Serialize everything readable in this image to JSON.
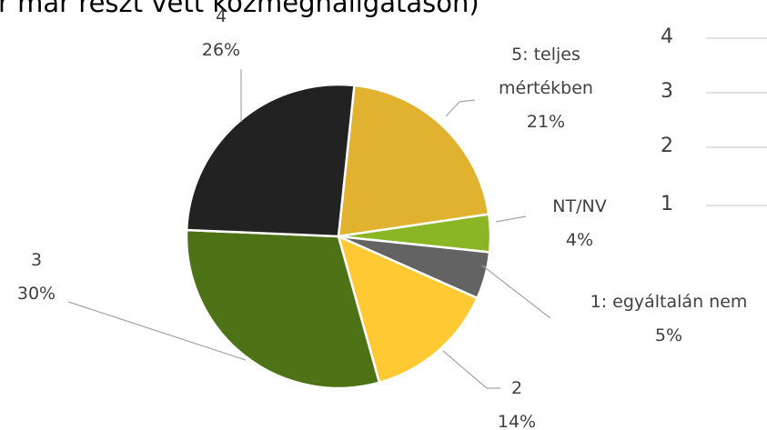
{
  "chart_data": {
    "type": "pie",
    "title": "r már részt vett közmeghallgatáson)",
    "categories": [
      "5: teljes mértékben",
      "NT/NV",
      "1: egyáltalán nem",
      "2",
      "3",
      "4"
    ],
    "values": [
      21,
      4,
      5,
      14,
      30,
      26
    ],
    "value_labels": [
      "21%",
      "4%",
      "5%",
      "14%",
      "30%",
      "26%"
    ],
    "colors": [
      "#e0b22f",
      "#8ab626",
      "#636363",
      "#ffc933",
      "#4e7216",
      "#222222"
    ],
    "legend": [
      "4",
      "3",
      "2",
      "1"
    ]
  }
}
